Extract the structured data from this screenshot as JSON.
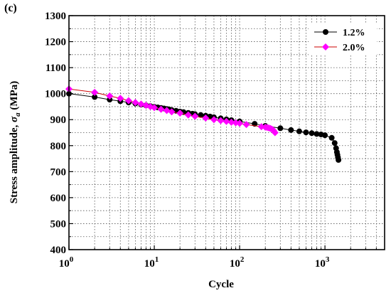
{
  "panel_label": "(c)",
  "chart_data": {
    "type": "scatter",
    "xlabel": "Cycle",
    "ylabel_prefix": "Stress amplitude, ",
    "ylabel_symbol": "σ",
    "ylabel_subscript": "a",
    "ylabel_suffix": " (MPa)",
    "xscale": "log",
    "xlim": [
      1,
      5000
    ],
    "ylim": [
      400,
      1300
    ],
    "yticks": [
      400,
      500,
      600,
      700,
      800,
      900,
      1000,
      1100,
      1200,
      1300
    ],
    "xticks": [
      {
        "value": 1,
        "base": "10",
        "exp": "0"
      },
      {
        "value": 10,
        "base": "10",
        "exp": "1"
      },
      {
        "value": 100,
        "base": "10",
        "exp": "2"
      },
      {
        "value": 1000,
        "base": "10",
        "exp": "3"
      }
    ],
    "grid": true,
    "legend_position": "top-right",
    "series": [
      {
        "name": "1.2%",
        "color": "#000000",
        "line_color": "#000000",
        "marker": "circle",
        "x": [
          1,
          2,
          3,
          4,
          5,
          6,
          7,
          8,
          9,
          10,
          11,
          12,
          13,
          14,
          15,
          16,
          18,
          20,
          22,
          25,
          28,
          30,
          35,
          40,
          45,
          50,
          60,
          70,
          80,
          100,
          150,
          200,
          300,
          400,
          500,
          600,
          700,
          800,
          900,
          1000,
          1200,
          1300,
          1350,
          1380,
          1400,
          1420,
          1440
        ],
        "y": [
          1000,
          987,
          977,
          971,
          966,
          962,
          958,
          955,
          952,
          949,
          947,
          945,
          943,
          941,
          939,
          937,
          934,
          931,
          929,
          926,
          923,
          921,
          918,
          915,
          912,
          909,
          905,
          901,
          898,
          893,
          884,
          876,
          867,
          860,
          855,
          851,
          848,
          845,
          843,
          840,
          830,
          810,
          790,
          775,
          765,
          755,
          745
        ]
      },
      {
        "name": "2.0%",
        "color": "#ff00ff",
        "line_color": "#cc0000",
        "marker": "diamond",
        "x": [
          1,
          2,
          3,
          4,
          5,
          6,
          7,
          8,
          9,
          10,
          12,
          14,
          16,
          20,
          25,
          30,
          40,
          50,
          60,
          70,
          80,
          90,
          100,
          120,
          180,
          200,
          210,
          220,
          230,
          240,
          250,
          260
        ],
        "y": [
          1018,
          1005,
          991,
          982,
          973,
          966,
          960,
          955,
          950,
          946,
          940,
          935,
          930,
          925,
          918,
          913,
          906,
          900,
          896,
          893,
          890,
          888,
          886,
          881,
          873,
          871,
          870,
          868,
          866,
          863,
          858,
          850
        ]
      }
    ]
  }
}
